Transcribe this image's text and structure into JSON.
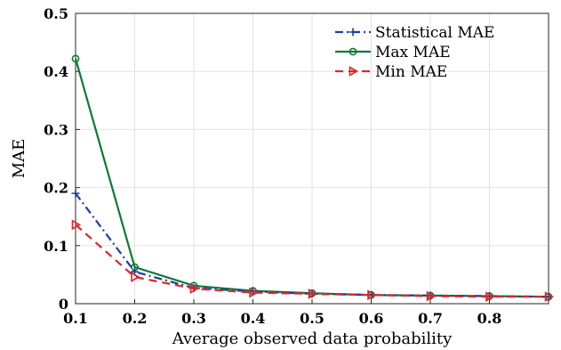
{
  "chart_data": {
    "type": "line",
    "title": "",
    "xlabel": "Average observed data probability",
    "ylabel": "MAE",
    "xlim": [
      0.1,
      0.9
    ],
    "ylim": [
      0,
      0.5
    ],
    "x_ticks": [
      0.1,
      0.2,
      0.3,
      0.4,
      0.5,
      0.6,
      0.7,
      0.8
    ],
    "x_tick_labels": [
      "0.1",
      "0.2",
      "0.3",
      "0.4",
      "0.5",
      "0.6",
      "0.7",
      "0.8"
    ],
    "y_ticks": [
      0,
      0.1,
      0.2,
      0.3,
      0.4,
      0.5
    ],
    "y_tick_labels": [
      "0",
      "0.1",
      "0.2",
      "0.3",
      "0.4",
      "0.5"
    ],
    "grid": true,
    "legend_position": "top-right",
    "x": [
      0.1,
      0.2,
      0.3,
      0.4,
      0.5,
      0.6,
      0.7,
      0.8,
      0.9
    ],
    "series": [
      {
        "name": "Statistical MAE",
        "color": "#1f3f9e",
        "line_style": "dash-dot",
        "marker": "plus",
        "values": [
          0.19,
          0.055,
          0.027,
          0.021,
          0.017,
          0.015,
          0.014,
          0.013,
          0.012
        ]
      },
      {
        "name": "Max MAE",
        "color": "#0e7a34",
        "line_style": "solid",
        "marker": "circle",
        "values": [
          0.422,
          0.063,
          0.031,
          0.022,
          0.018,
          0.015,
          0.014,
          0.013,
          0.012
        ]
      },
      {
        "name": "Min MAE",
        "color": "#e0262b",
        "line_style": "dashed",
        "marker": "triangle-right",
        "values": [
          0.136,
          0.046,
          0.026,
          0.019,
          0.017,
          0.015,
          0.013,
          0.012,
          0.012
        ]
      }
    ]
  }
}
